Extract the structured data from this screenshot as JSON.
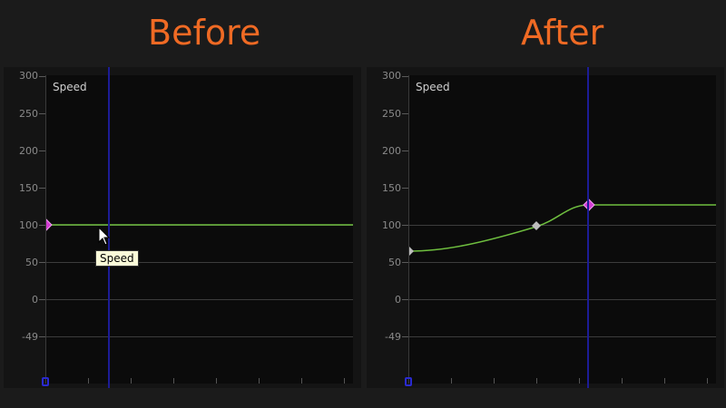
{
  "headings": {
    "before": "Before",
    "after": "After"
  },
  "graph": {
    "series_label": "Speed",
    "y_ticks": [
      "300",
      "250",
      "200",
      "150",
      "100",
      "50",
      "0",
      "-49"
    ],
    "curve_color": "#6fbf3f",
    "playhead_color": "#1c1c96",
    "keyframe_active_color": "#d23cd2",
    "keyframe_color": "#bdbdbd"
  },
  "before": {
    "tooltip": "Speed",
    "keyframes": [
      {
        "frame": 0,
        "value": 100,
        "active": true
      }
    ],
    "playhead_frame": 0.21
  },
  "after": {
    "keyframes": [
      {
        "frame": 0,
        "value": 65,
        "active": false
      },
      {
        "frame": 0.42,
        "value": 98,
        "active": false
      },
      {
        "frame": 0.58,
        "value": 126,
        "active": true
      }
    ],
    "playhead_frame": 0.58
  }
}
